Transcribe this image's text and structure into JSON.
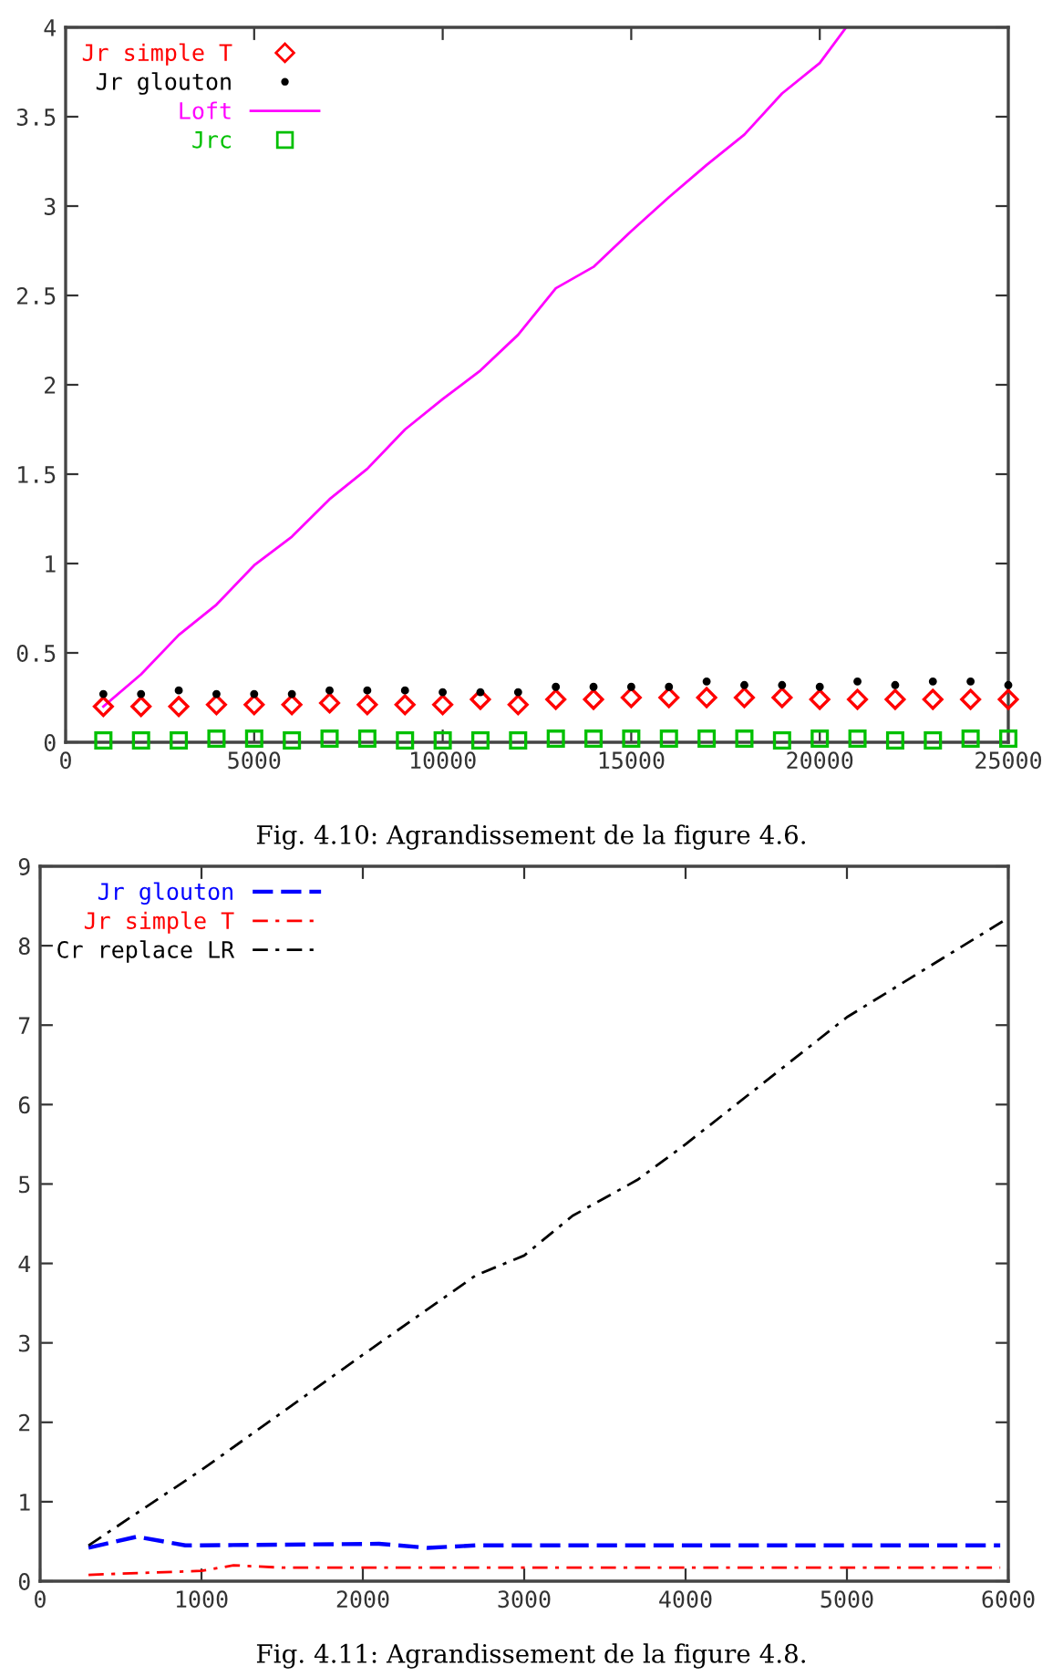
{
  "chart_data": [
    {
      "type": "scatter",
      "xlim": [
        0,
        25000
      ],
      "ylim": [
        0,
        4
      ],
      "xticks": [
        0,
        5000,
        10000,
        15000,
        20000,
        25000
      ],
      "yticks": [
        0,
        0.5,
        1,
        1.5,
        2,
        2.5,
        3,
        3.5,
        4
      ],
      "grid": false,
      "legend": "top left",
      "x": [
        1000,
        2000,
        3000,
        4000,
        5000,
        6000,
        7000,
        8000,
        9000,
        10000,
        11000,
        12000,
        13000,
        14000,
        15000,
        16000,
        17000,
        18000,
        19000,
        20000,
        21000,
        22000,
        23000,
        24000,
        25000
      ],
      "annotations": [
        "Fig. 4.10: Agrandissement de la figure 4.6."
      ],
      "series": [
        {
          "name": "Jr simple T",
          "color": "#ff0000",
          "marker": "diamond",
          "values": [
            0.2,
            0.2,
            0.2,
            0.21,
            0.21,
            0.21,
            0.22,
            0.21,
            0.21,
            0.21,
            0.24,
            0.21,
            0.24,
            0.24,
            0.25,
            0.25,
            0.25,
            0.25,
            0.25,
            0.24,
            0.24,
            0.24,
            0.24,
            0.24,
            0.24
          ]
        },
        {
          "name": "Jr glouton",
          "color": "#000000",
          "marker": "circle",
          "values": [
            0.27,
            0.27,
            0.29,
            0.27,
            0.27,
            0.27,
            0.29,
            0.29,
            0.29,
            0.28,
            0.28,
            0.28,
            0.31,
            0.31,
            0.31,
            0.31,
            0.34,
            0.32,
            0.32,
            0.31,
            0.34,
            0.32,
            0.34,
            0.34,
            0.32
          ]
        },
        {
          "name": "Loft",
          "type": "line",
          "color": "#ff00ff",
          "line_style": "solid",
          "marker": "none",
          "x": [
            1000,
            2000,
            3000,
            4000,
            5000,
            6000,
            7000,
            8000,
            9000,
            10000,
            11000,
            12000,
            13000,
            14000,
            15000,
            16000,
            17000,
            18000,
            19000,
            20000,
            20700
          ],
          "values": [
            0.2,
            0.38,
            0.6,
            0.77,
            0.99,
            1.15,
            1.36,
            1.53,
            1.75,
            1.92,
            2.08,
            2.28,
            2.54,
            2.66,
            2.86,
            3.05,
            3.23,
            3.4,
            3.63,
            3.8,
            4.0
          ]
        },
        {
          "name": "Jrc",
          "color": "#00c000",
          "marker": "square",
          "values": [
            0.01,
            0.01,
            0.01,
            0.02,
            0.02,
            0.01,
            0.02,
            0.02,
            0.01,
            0.01,
            0.01,
            0.01,
            0.02,
            0.02,
            0.02,
            0.02,
            0.02,
            0.02,
            0.01,
            0.02,
            0.02,
            0.01,
            0.01,
            0.02,
            0.02
          ]
        }
      ]
    },
    {
      "type": "line",
      "xlim": [
        0,
        6000
      ],
      "ylim": [
        0,
        9
      ],
      "xticks": [
        0,
        1000,
        2000,
        3000,
        4000,
        5000,
        6000
      ],
      "yticks": [
        0,
        1,
        2,
        3,
        4,
        5,
        6,
        7,
        8,
        9
      ],
      "grid": false,
      "legend": "top left",
      "marker": "none",
      "annotations": [
        "Fig. 4.11: Agrandissement de la figure 4.8."
      ],
      "series": [
        {
          "name": "Jr glouton",
          "color": "#0000ff",
          "line_style": "dashed",
          "x": [
            300,
            600,
            900,
            2100,
            2400,
            2700,
            5950
          ],
          "values": [
            0.42,
            0.56,
            0.45,
            0.47,
            0.42,
            0.45,
            0.45
          ]
        },
        {
          "name": "Jr simple T",
          "color": "#ff0000",
          "line_style": "dashdot",
          "x": [
            300,
            1000,
            1200,
            1500,
            5950
          ],
          "values": [
            0.08,
            0.13,
            0.2,
            0.17,
            0.17
          ]
        },
        {
          "name": "Cr replace LR",
          "color": "#000000",
          "line_style": "dashdot",
          "x": [
            300,
            1000,
            2000,
            2700,
            3000,
            3300,
            3700,
            4000,
            5000,
            6000
          ],
          "values": [
            0.45,
            1.4,
            2.85,
            3.85,
            4.1,
            4.6,
            5.05,
            5.5,
            7.1,
            8.35
          ]
        }
      ]
    }
  ]
}
